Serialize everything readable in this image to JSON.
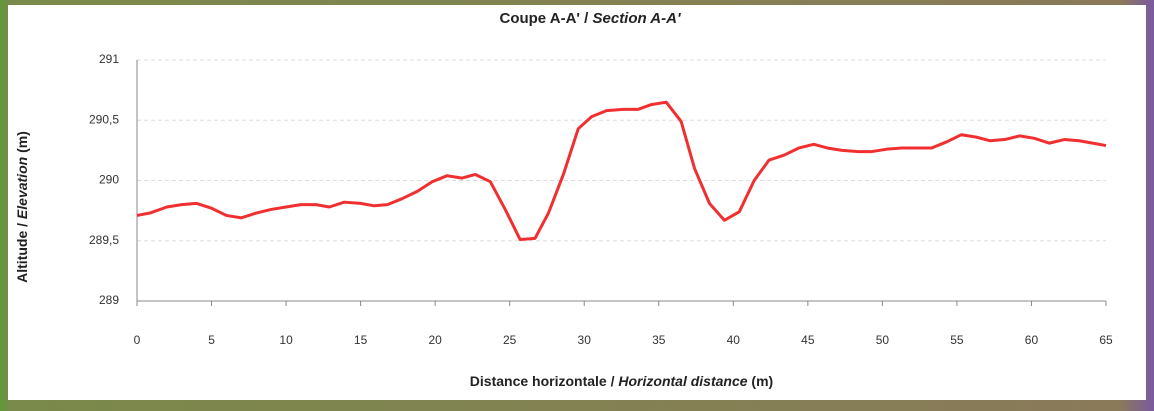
{
  "chart_data": {
    "type": "line",
    "title": [
      "Coupe A-A' / ",
      "Section A-A'"
    ],
    "x_label": [
      "Distance horizontale / ",
      "Horizontal distance",
      " (m)"
    ],
    "y_label": [
      "Altitude / ",
      "Elevation",
      " (m)"
    ],
    "xlim": [
      0,
      65
    ],
    "xticks": [
      0,
      5,
      10,
      15,
      20,
      25,
      30,
      35,
      40,
      45,
      50,
      55,
      60,
      65
    ],
    "ylim": [
      289,
      291
    ],
    "yticks": [
      289,
      {
        "value": 289.5,
        "label": "289,5"
      },
      290,
      {
        "value": 290.5,
        "label": "290,5"
      },
      291
    ],
    "grid": true,
    "series": [
      {
        "color": "#f03030",
        "x": [
          0,
          0.87,
          2.0,
          3.0,
          4.0,
          5.0,
          6.0,
          7.0,
          8.0,
          9.0,
          10.0,
          11.0,
          12.0,
          12.9,
          13.9,
          15.0,
          15.9,
          16.8,
          17.8,
          18.8,
          19.8,
          20.8,
          21.8,
          22.7,
          23.7,
          24.7,
          25.7,
          26.7,
          27.6,
          28.6,
          29.6,
          30.5,
          31.5,
          32.6,
          33.6,
          34.5,
          35.5,
          36.5,
          37.4,
          38.4,
          39.4,
          40.4,
          41.4,
          42.4,
          43.4,
          44.4,
          45.4,
          46.3,
          47.3,
          48.4,
          49.3,
          50.3,
          51.3,
          52.3,
          53.3,
          54.3,
          55.3,
          56.3,
          57.2,
          58.2,
          59.2,
          60.2,
          61.2,
          62.2,
          63.2,
          64.1,
          65.0
        ],
        "values": [
          289.71,
          289.73,
          289.78,
          289.8,
          289.81,
          289.77,
          289.71,
          289.69,
          289.73,
          289.76,
          289.78,
          289.8,
          289.8,
          289.78,
          289.82,
          289.81,
          289.79,
          289.8,
          289.85,
          289.91,
          289.99,
          290.04,
          290.02,
          290.05,
          289.99,
          289.76,
          289.51,
          289.52,
          289.73,
          290.05,
          290.43,
          290.53,
          290.58,
          290.59,
          290.59,
          290.63,
          290.65,
          290.49,
          290.1,
          289.81,
          289.67,
          289.74,
          290.0,
          290.17,
          290.21,
          290.27,
          290.3,
          290.27,
          290.25,
          290.24,
          290.24,
          290.26,
          290.27,
          290.27,
          290.27,
          290.32,
          290.38,
          290.36,
          290.33,
          290.34,
          290.37,
          290.35,
          290.31,
          290.34,
          290.33,
          290.31,
          290.29
        ]
      }
    ]
  }
}
